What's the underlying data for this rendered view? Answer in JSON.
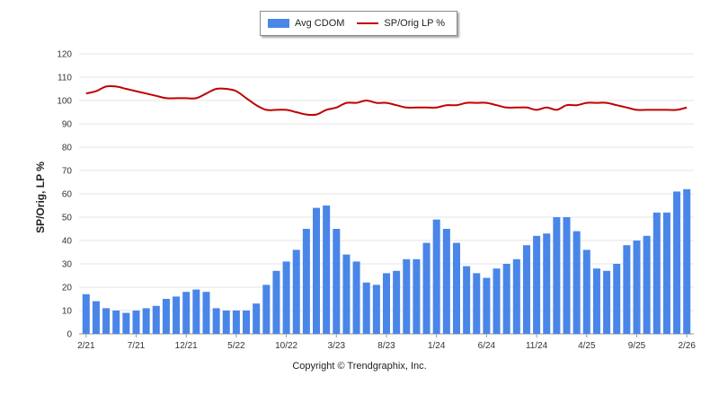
{
  "legend": {
    "bar_label": "Avg CDOM",
    "line_label": "SP/Orig LP %"
  },
  "copyright": "Copyright © Trendgraphix, Inc.",
  "chart_data": {
    "type": "bar",
    "ylabel": "SP/Orig, LP %",
    "xlabel": "",
    "ylim": [
      0,
      120
    ],
    "yticks": [
      0,
      10,
      20,
      30,
      40,
      50,
      60,
      70,
      80,
      90,
      100,
      110,
      120
    ],
    "grid": true,
    "legend_position": "top-center",
    "x_tick_labels": [
      {
        "index": 0,
        "label": "2/21"
      },
      {
        "index": 5,
        "label": "7/21"
      },
      {
        "index": 10,
        "label": "12/21"
      },
      {
        "index": 15,
        "label": "5/22"
      },
      {
        "index": 20,
        "label": "10/22"
      },
      {
        "index": 25,
        "label": "3/23"
      },
      {
        "index": 30,
        "label": "8/23"
      },
      {
        "index": 35,
        "label": "1/24"
      },
      {
        "index": 40,
        "label": "6/24"
      },
      {
        "index": 45,
        "label": "11/24"
      },
      {
        "index": 50,
        "label": "4/25"
      },
      {
        "index": 55,
        "label": "9/25"
      },
      {
        "index": 60,
        "label": "2/26"
      }
    ],
    "series": [
      {
        "name": "Avg CDOM",
        "type": "bar",
        "color": "#4a86e8",
        "values": [
          17,
          14,
          11,
          10,
          9,
          10,
          11,
          12,
          15,
          16,
          18,
          19,
          18,
          11,
          10,
          10,
          10,
          13,
          21,
          27,
          31,
          36,
          45,
          54,
          55,
          45,
          34,
          31,
          22,
          21,
          26,
          27,
          32,
          32,
          39,
          49,
          45,
          39,
          29,
          26,
          24,
          28,
          30,
          32,
          38,
          42,
          43,
          50,
          50,
          44,
          36,
          28,
          27,
          30,
          38,
          40,
          42,
          52,
          52,
          61,
          62
        ]
      },
      {
        "name": "SP/Orig LP %",
        "type": "line",
        "color": "#c00000",
        "values": [
          103,
          104,
          106,
          106,
          105,
          104,
          103,
          102,
          101,
          101,
          101,
          101,
          103,
          105,
          105,
          104,
          101,
          98,
          96,
          96,
          96,
          95,
          94,
          94,
          96,
          97,
          99,
          99,
          100,
          99,
          99,
          98,
          97,
          97,
          97,
          97,
          98,
          98,
          99,
          99,
          99,
          98,
          97,
          97,
          97,
          96,
          97,
          96,
          98,
          98,
          99,
          99,
          99,
          98,
          97,
          96,
          96,
          96,
          96,
          96,
          97
        ]
      }
    ]
  }
}
